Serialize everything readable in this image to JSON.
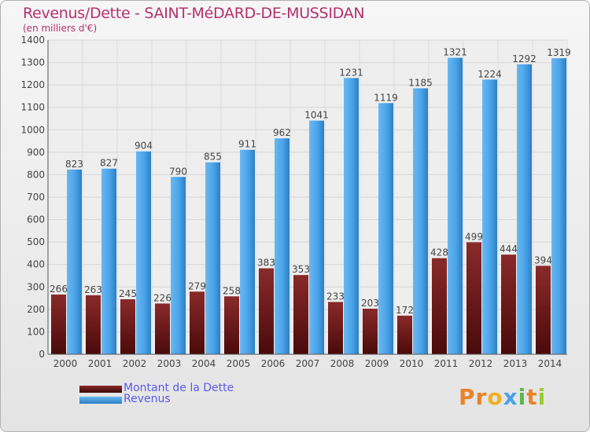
{
  "title": "Revenus/Dette - SAINT-MéDARD-DE-MUSSIDAN",
  "subtitle": "(en milliers d'€)",
  "legend": {
    "debt_label": "Montant de la Dette",
    "revenue_label": "Revenus"
  },
  "logo_text": "Proxiti",
  "colors": {
    "debt": "#7a1f1f",
    "revenue": "#4aa3e8",
    "title": "#b4306e"
  },
  "chart_data": {
    "type": "bar",
    "title": "Revenus/Dette - SAINT-MéDARD-DE-MUSSIDAN",
    "ylabel": "(en milliers d'€)",
    "xlabel": "",
    "ylim": [
      0,
      1400
    ],
    "yticks": [
      0,
      100,
      200,
      300,
      400,
      500,
      600,
      700,
      800,
      900,
      1000,
      1100,
      1200,
      1300,
      1400
    ],
    "grid": true,
    "legend_position": "bottom-left",
    "categories": [
      "2000",
      "2001",
      "2002",
      "2003",
      "2004",
      "2005",
      "2006",
      "2007",
      "2008",
      "2009",
      "2010",
      "2011",
      "2012",
      "2013",
      "2014"
    ],
    "series": [
      {
        "name": "Montant de la Dette",
        "values": [
          266,
          263,
          245,
          226,
          279,
          258,
          383,
          353,
          233,
          203,
          172,
          428,
          499,
          444,
          394
        ]
      },
      {
        "name": "Revenus",
        "values": [
          823,
          827,
          904,
          790,
          855,
          911,
          962,
          1041,
          1231,
          1119,
          1185,
          1321,
          1224,
          1292,
          1319
        ]
      }
    ]
  }
}
